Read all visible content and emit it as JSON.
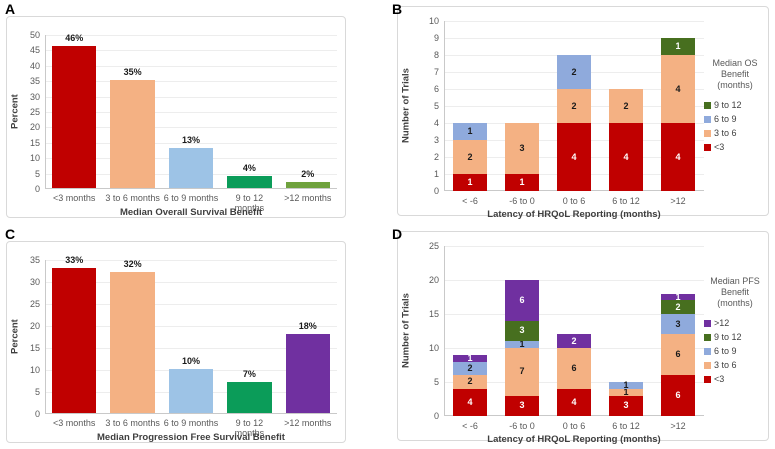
{
  "figure": {
    "background": "#ffffff"
  },
  "chart_data": [
    {
      "panel": "A",
      "type": "bar",
      "title": "",
      "xlabel": "Median Overall Survival Benefit",
      "ylabel": "Percent",
      "ylim": [
        0,
        50
      ],
      "ytick_step": 5,
      "grid": true,
      "categories": [
        "<3 months",
        "3 to 6 months",
        "6 to 9 months",
        "9 to 12 months",
        ">12 months"
      ],
      "values": [
        46,
        35,
        13,
        4,
        2
      ],
      "value_labels": [
        "46%",
        "35%",
        "13%",
        "4%",
        "2%"
      ],
      "bar_colors": [
        "#c00000",
        "#f4b183",
        "#9dc3e6",
        "#0b9c59",
        "#6fa23d"
      ]
    },
    {
      "panel": "B",
      "type": "stacked_bar",
      "title": "",
      "xlabel": "Latency of HRQoL Reporting (months)",
      "ylabel": "Number of Trials",
      "ylim": [
        0,
        10
      ],
      "ytick_step": 1,
      "grid": true,
      "legend_position": "right",
      "legend_title": "Median OS Benefit (months)",
      "categories": [
        "< -6",
        "-6 to 0",
        "0 to 6",
        "6 to 12",
        ">12"
      ],
      "series": [
        {
          "name": "<3",
          "color": "#c00000",
          "label_color": "#ffffff",
          "values": [
            1,
            1,
            4,
            4,
            4
          ]
        },
        {
          "name": "3 to 6",
          "color": "#f4b183",
          "label_color": "#1a1a1a",
          "values": [
            2,
            3,
            2,
            2,
            4
          ]
        },
        {
          "name": "6 to 9",
          "color": "#8faadc",
          "label_color": "#1a1a1a",
          "values": [
            1,
            0,
            2,
            0,
            0
          ]
        },
        {
          "name": "9 to 12",
          "color": "#476f1f",
          "label_color": "#ffffff",
          "values": [
            0,
            0,
            0,
            0,
            1
          ]
        }
      ],
      "totals": [
        4,
        4,
        8,
        6,
        9
      ]
    },
    {
      "panel": "C",
      "type": "bar",
      "title": "",
      "xlabel": "Median Progression Free Survival Benefit",
      "ylabel": "Percent",
      "ylim": [
        0,
        35
      ],
      "ytick_step": 5,
      "grid": true,
      "categories": [
        "<3 months",
        "3 to 6 months",
        "6 to 9 months",
        "9 to 12 months",
        ">12 months"
      ],
      "values": [
        33,
        32,
        10,
        7,
        18
      ],
      "value_labels": [
        "33%",
        "32%",
        "10%",
        "7%",
        "18%"
      ],
      "bar_colors": [
        "#c00000",
        "#f4b183",
        "#9dc3e6",
        "#0b9c59",
        "#7030a0"
      ]
    },
    {
      "panel": "D",
      "type": "stacked_bar",
      "title": "",
      "xlabel": "Latency of HRQoL Reporting (months)",
      "ylabel": "Number of Trials",
      "ylim": [
        0,
        25
      ],
      "ytick_step": 5,
      "grid": true,
      "legend_position": "right",
      "legend_title": "Median PFS Benefit (months)",
      "categories": [
        "< -6",
        "-6 to 0",
        "0 to 6",
        "6 to 12",
        ">12"
      ],
      "series": [
        {
          "name": "<3",
          "color": "#c00000",
          "label_color": "#ffffff",
          "values": [
            4,
            3,
            4,
            3,
            6
          ]
        },
        {
          "name": "3 to 6",
          "color": "#f4b183",
          "label_color": "#1a1a1a",
          "values": [
            2,
            7,
            6,
            1,
            6
          ]
        },
        {
          "name": "6 to 9",
          "color": "#8faadc",
          "label_color": "#1a1a1a",
          "values": [
            2,
            1,
            0,
            1,
            3
          ]
        },
        {
          "name": "9 to 12",
          "color": "#476f1f",
          "label_color": "#ffffff",
          "values": [
            0,
            3,
            0,
            0,
            2
          ]
        },
        {
          "name": ">12",
          "color": "#7030a0",
          "label_color": "#ffffff",
          "values": [
            1,
            6,
            2,
            0,
            1
          ]
        }
      ],
      "totals": [
        9,
        20,
        12,
        5,
        18
      ]
    }
  ]
}
